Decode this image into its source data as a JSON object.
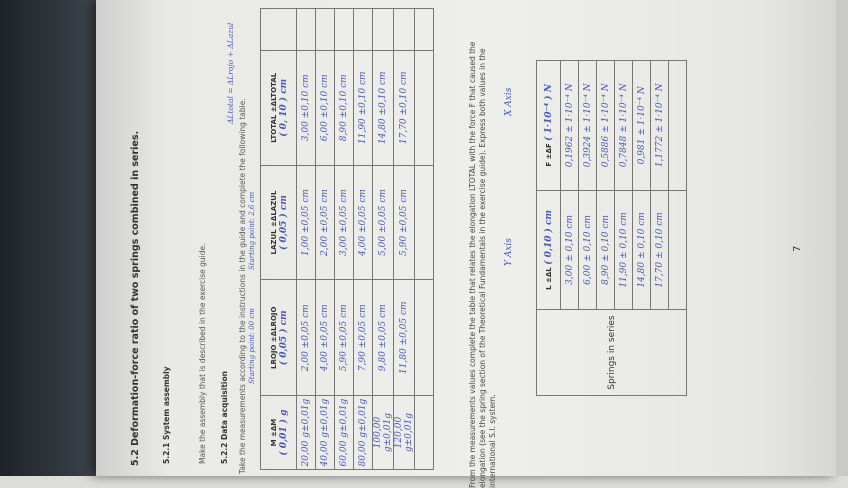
{
  "section": {
    "heading": "5.2 Deformation-force ratio of two springs combined in series.",
    "sub1_title": "5.2.1 System assembly",
    "sub1_text": "Make the assembly that is described in the exercise guide.",
    "sub2_title": "5.2.2 Data acquisition",
    "sub2_text": "Take the measurements according to the instructions in the guide and complete the following table."
  },
  "annotations": {
    "start_red": "Starting point: 00 cm",
    "start_blue": "Starting point: 2,6 cm",
    "corner_note": "ΔLtotal = ΔLrojo + ΔLazul",
    "y_axis": "Y Axis",
    "x_axis": "X Axis"
  },
  "table1": {
    "headers": [
      {
        "label": "M ±ΔM",
        "unit": "( 0,01 ) g"
      },
      {
        "label": "LROJO ±ΔLROJO",
        "unit": "( 0,05 ) cm"
      },
      {
        "label": "LAZUL ±ΔLAZUL",
        "unit": "( 0,05 ) cm"
      },
      {
        "label": "LTOTAL ±ΔLTOTAL",
        "unit": "( 0, 10 ) cm"
      }
    ],
    "rows": [
      [
        "20,00 g±0,01g",
        "2,00 ±0,05 cm",
        "1,00 ±0,05 cm",
        "3,00 ±0,10 cm"
      ],
      [
        "40,00 g±0,01g",
        "4,00 ±0,05 cm",
        "2,00 ±0,05 cm",
        "6,00 ±0,10 cm"
      ],
      [
        "60,00 g±0,01g",
        "5,90 ±0,05 cm",
        "3,00 ±0,05 cm",
        "8,90 ±0,10 cm"
      ],
      [
        "80,00 g±0,01g",
        "7,90 ±0,05 cm",
        "4,00 ±0,05 cm",
        "11,90 ±0,10 cm"
      ],
      [
        "100,00 g±0,01g",
        "9,80 ±0,05 cm",
        "5,00 ±0,05 cm",
        "14,80 ±0,10 cm"
      ],
      [
        "120,00 g±0,01g",
        "11,80 ±0,05 cm",
        "5,90 ±0,05 cm",
        "17,70 ±0,10 cm"
      ],
      [
        "",
        "",
        "",
        ""
      ]
    ]
  },
  "paragraph": "From the measurements values complete the table that relates the elongation LTOTAL with the force F that caused the elongation (see the spring section of the Theoretical Fundamentals in the exercise guide). Express both values in the international S.I. system.",
  "table2": {
    "row_label": "Springs in series",
    "headers": [
      {
        "label": "L ±ΔL",
        "unit": "( 0,10 ) cm"
      },
      {
        "label": "F ±ΔF",
        "unit": "( 1·10⁻⁴ ) N"
      }
    ],
    "rows": [
      [
        "3,00 ± 0,10 cm",
        "0,1962 ± 1·10⁻⁴ N"
      ],
      [
        "6,00 ± 0,10 cm",
        "0,3924 ± 1·10⁻⁴ N"
      ],
      [
        "8,90 ± 0,10 cm",
        "0,5886 ± 1·10⁻⁴ N"
      ],
      [
        "11,90 ± 0,10 cm",
        "0,7848 ± 1·10⁻⁴ N"
      ],
      [
        "14,80 ± 0,10 cm",
        "0,981 ± 1·10⁻⁴ N"
      ],
      [
        "17,70 ± 0,10 cm",
        "1,1772 ± 1·10⁻⁴ N"
      ],
      [
        "",
        ""
      ]
    ]
  },
  "page_number": "7"
}
